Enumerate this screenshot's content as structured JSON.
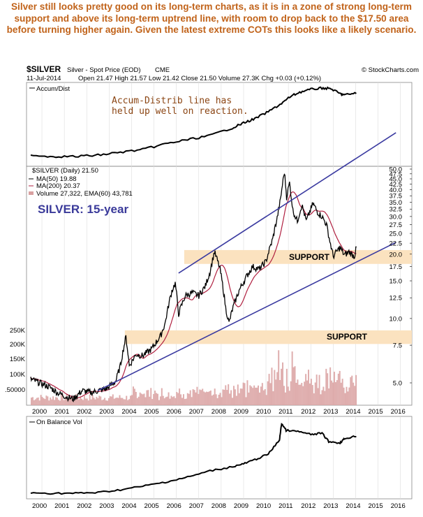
{
  "commentary": "Silver still looks pretty good on its long-term charts, as it is in a zone of strong long-term support and above its long-term uptrend line, with room to drop back to the $17.50 area before turning higher again. Given the latest extreme COTs this looks like a likely scenario.",
  "header": {
    "symbol": "$SILVER",
    "name": "Silver - Spot Price (EOD)",
    "exchange": "CME",
    "brand": "© StockCharts.com",
    "date": "11-Jul-2014",
    "quote": "Open 21.47  High 21.57  Low 21.42  Close 21.50  Volume 27.3K  Chg +0.03 (+0.12%)"
  },
  "accum_panel": {
    "label": "Accum/Dist",
    "annotation_line1": "Accum-Distrib line has",
    "annotation_line2": "held up well on reaction."
  },
  "price_panel": {
    "legend": [
      "$SILVER (Daily) 21.50",
      "MA(50) 19.88",
      "MA(200) 20.37",
      "Volume 27,322, EMA(60) 43,781"
    ],
    "title": "SILVER: 15-year",
    "support_upper_label": "SUPPORT",
    "support_lower_label": "SUPPORT",
    "price_ticks": [
      "50.0",
      "47.5",
      "45.0",
      "42.5",
      "40.0",
      "37.5",
      "35.0",
      "32.5",
      "30.0",
      "27.5",
      "25.0",
      "22.5",
      "20.0",
      "17.5",
      "15.0",
      "12.5",
      "10.0",
      "7.5",
      "5.0"
    ],
    "volume_ticks": [
      "250K",
      "200K",
      "150K",
      "100K",
      ".50000"
    ]
  },
  "obv_panel": {
    "label": "On Balance Vol"
  },
  "x_ticks": [
    "2000",
    "2001",
    "2002",
    "2003",
    "2004",
    "2005",
    "2006",
    "2007",
    "2008",
    "2009",
    "2010",
    "2011",
    "2012",
    "2013",
    "2014",
    "2015",
    "2016"
  ],
  "colors": {
    "commentary": "#c1631a",
    "annotation": "#8b4513",
    "title": "#3a3a9a",
    "trendline": "#3a3aa0",
    "support_band": "#fbe2bf",
    "ma_line": "#b02040",
    "volume": "#d9a0a0"
  },
  "chart_data": {
    "type": "line",
    "title": "SILVER: 15-year",
    "scale": "log",
    "ylim": [
      3.9,
      52
    ],
    "series": [
      {
        "name": "$SILVER (Daily)",
        "x": [
          2000.0,
          2000.4,
          2000.8,
          2001.2,
          2001.6,
          2001.9,
          2002.3,
          2002.7,
          2003.0,
          2003.4,
          2003.8,
          2004.0,
          2004.25,
          2004.4,
          2004.7,
          2005.0,
          2005.4,
          2005.8,
          2006.0,
          2006.3,
          2006.45,
          2006.6,
          2006.9,
          2007.2,
          2007.5,
          2007.8,
          2008.0,
          2008.2,
          2008.45,
          2008.7,
          2008.85,
          2009.0,
          2009.3,
          2009.6,
          2009.9,
          2010.2,
          2010.5,
          2010.8,
          2011.0,
          2011.15,
          2011.32,
          2011.42,
          2011.55,
          2011.7,
          2011.9,
          2012.1,
          2012.3,
          2012.6,
          2012.8,
          2013.0,
          2013.2,
          2013.35,
          2013.5,
          2013.8,
          2014.0,
          2014.2,
          2014.45,
          2014.53
        ],
        "values": [
          5.2,
          5.0,
          4.8,
          4.5,
          4.3,
          4.2,
          4.6,
          4.5,
          4.6,
          4.7,
          5.1,
          6.0,
          8.2,
          6.0,
          6.8,
          6.7,
          7.2,
          8.3,
          9.5,
          13.5,
          14.6,
          10.5,
          12.8,
          13.2,
          12.8,
          14.2,
          16.5,
          20.5,
          17.0,
          11.2,
          9.5,
          11.0,
          13.5,
          15.5,
          17.5,
          17.0,
          18.5,
          23.5,
          29.5,
          36.0,
          48.5,
          37.0,
          43.0,
          32.0,
          28.5,
          34.0,
          28.5,
          34.5,
          31.5,
          30.0,
          27.5,
          23.0,
          19.5,
          21.5,
          19.8,
          20.5,
          19.5,
          21.5
        ]
      },
      {
        "name": "Trend line (channel top)",
        "x": [
          2006.6,
          2016.3
        ],
        "values": [
          16.3,
          74.0
        ]
      },
      {
        "name": "Trend line (uptrend)",
        "x": [
          2003.0,
          2016.3
        ],
        "values": [
          4.6,
          22.7
        ]
      }
    ],
    "support_zones": [
      [
        18.0,
        20.9
      ],
      [
        7.6,
        8.8
      ]
    ],
    "x_ticks": [
      2000,
      2001,
      2002,
      2003,
      2004,
      2005,
      2006,
      2007,
      2008,
      2009,
      2010,
      2011,
      2012,
      2013,
      2014,
      2015,
      2016
    ]
  }
}
